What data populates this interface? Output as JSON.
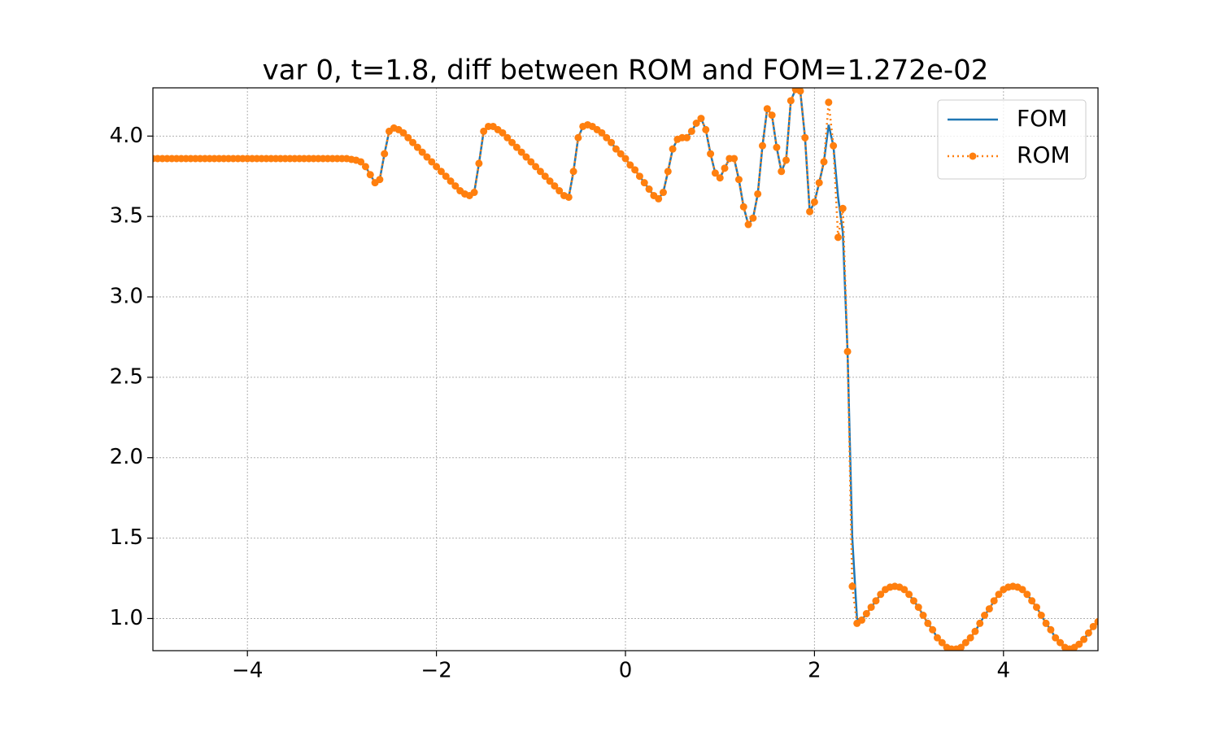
{
  "chart_data": {
    "type": "line",
    "title": "var 0, t=1.8,  diff between ROM and FOM=1.272e-02",
    "x": [
      -5,
      -4.95,
      -4.9,
      -4.85,
      -4.8,
      -4.75,
      -4.7,
      -4.65,
      -4.6,
      -4.55,
      -4.5,
      -4.45,
      -4.4,
      -4.35,
      -4.3,
      -4.25,
      -4.2,
      -4.15,
      -4.1,
      -4.05,
      -4,
      -3.95,
      -3.9,
      -3.85,
      -3.8,
      -3.75,
      -3.7,
      -3.65,
      -3.6,
      -3.55,
      -3.5,
      -3.45,
      -3.4,
      -3.35,
      -3.3,
      -3.25,
      -3.2,
      -3.15,
      -3.1,
      -3.05,
      -3,
      -2.95,
      -2.9,
      -2.85,
      -2.8,
      -2.75,
      -2.7,
      -2.65,
      -2.6,
      -2.55,
      -2.5,
      -2.45,
      -2.4,
      -2.35,
      -2.3,
      -2.25,
      -2.2,
      -2.15,
      -2.1,
      -2.05,
      -2,
      -1.95,
      -1.9,
      -1.85,
      -1.8,
      -1.75,
      -1.7,
      -1.65,
      -1.6,
      -1.55,
      -1.5,
      -1.45,
      -1.4,
      -1.35,
      -1.3,
      -1.25,
      -1.2,
      -1.15,
      -1.1,
      -1.05,
      -1,
      -0.95,
      -0.9,
      -0.85,
      -0.8,
      -0.75,
      -0.7,
      -0.65,
      -0.6,
      -0.55,
      -0.5,
      -0.45,
      -0.4,
      -0.35,
      -0.3,
      -0.25,
      -0.2,
      -0.15,
      -0.1,
      -0.05,
      0,
      0.05,
      0.1,
      0.15,
      0.2,
      0.25,
      0.3,
      0.35,
      0.4,
      0.45,
      0.5,
      0.55,
      0.6,
      0.65,
      0.7,
      0.75,
      0.8,
      0.85,
      0.9,
      0.95,
      1,
      1.05,
      1.1,
      1.15,
      1.2,
      1.25,
      1.3,
      1.35,
      1.4,
      1.45,
      1.5,
      1.55,
      1.6,
      1.65,
      1.7,
      1.75,
      1.8,
      1.85,
      1.9,
      1.95,
      2,
      2.05,
      2.1,
      2.15,
      2.2,
      2.25,
      2.3,
      2.35,
      2.4,
      2.45,
      2.5,
      2.55,
      2.6,
      2.65,
      2.7,
      2.75,
      2.8,
      2.85,
      2.9,
      2.95,
      3,
      3.05,
      3.1,
      3.15,
      3.2,
      3.25,
      3.3,
      3.35,
      3.4,
      3.45,
      3.5,
      3.55,
      3.6,
      3.65,
      3.7,
      3.75,
      3.8,
      3.85,
      3.9,
      3.95,
      4,
      4.05,
      4.1,
      4.15,
      4.2,
      4.25,
      4.3,
      4.35,
      4.4,
      4.45,
      4.5,
      4.55,
      4.6,
      4.65,
      4.7,
      4.75,
      4.8,
      4.85,
      4.9,
      4.95,
      5
    ],
    "series": [
      {
        "name": "FOM",
        "color": "#1f77b4",
        "linestyle": "solid",
        "values": [
          3.86,
          3.86,
          3.86,
          3.86,
          3.86,
          3.86,
          3.86,
          3.86,
          3.86,
          3.86,
          3.86,
          3.86,
          3.86,
          3.86,
          3.86,
          3.86,
          3.86,
          3.86,
          3.86,
          3.86,
          3.86,
          3.86,
          3.86,
          3.86,
          3.86,
          3.86,
          3.86,
          3.86,
          3.86,
          3.86,
          3.86,
          3.86,
          3.86,
          3.86,
          3.86,
          3.86,
          3.86,
          3.86,
          3.86,
          3.86,
          3.86,
          3.86,
          3.855,
          3.85,
          3.84,
          3.81,
          3.76,
          3.71,
          3.73,
          3.89,
          4.03,
          4.05,
          4.04,
          4.02,
          3.99,
          3.96,
          3.93,
          3.9,
          3.87,
          3.84,
          3.81,
          3.78,
          3.75,
          3.72,
          3.69,
          3.66,
          3.64,
          3.63,
          3.65,
          3.83,
          4.03,
          4.06,
          4.06,
          4.04,
          4.02,
          3.99,
          3.96,
          3.93,
          3.9,
          3.87,
          3.84,
          3.81,
          3.78,
          3.75,
          3.72,
          3.69,
          3.66,
          3.63,
          3.62,
          3.78,
          3.99,
          4.06,
          4.07,
          4.06,
          4.04,
          4.02,
          3.99,
          3.96,
          3.92,
          3.89,
          3.86,
          3.82,
          3.79,
          3.75,
          3.71,
          3.67,
          3.63,
          3.61,
          3.65,
          3.78,
          3.92,
          3.98,
          3.99,
          3.99,
          4.03,
          4.08,
          4.11,
          4.04,
          3.89,
          3.77,
          3.74,
          3.8,
          3.86,
          3.86,
          3.73,
          3.56,
          3.45,
          3.49,
          3.64,
          3.94,
          4.17,
          4.13,
          3.93,
          3.78,
          3.85,
          4.22,
          4.29,
          4.28,
          3.99,
          3.53,
          3.59,
          3.71,
          3.84,
          4.07,
          3.94,
          3.62,
          3.4,
          2.66,
          1.5,
          1.0,
          0.99,
          1.03,
          1.07,
          1.11,
          1.15,
          1.18,
          1.195,
          1.2,
          1.195,
          1.18,
          1.15,
          1.11,
          1.07,
          1.02,
          0.97,
          0.93,
          0.88,
          0.85,
          0.82,
          0.81,
          0.81,
          0.82,
          0.85,
          0.88,
          0.92,
          0.97,
          1.02,
          1.06,
          1.11,
          1.15,
          1.18,
          1.195,
          1.2,
          1.195,
          1.18,
          1.15,
          1.11,
          1.07,
          1.02,
          0.97,
          0.93,
          0.88,
          0.85,
          0.82,
          0.81,
          0.82,
          0.84,
          0.87,
          0.91,
          0.95,
          0.98
        ]
      },
      {
        "name": "ROM",
        "color": "#ff7f0e",
        "linestyle": "dotted",
        "marker": "o",
        "values": [
          3.86,
          3.86,
          3.86,
          3.86,
          3.86,
          3.86,
          3.86,
          3.86,
          3.86,
          3.86,
          3.86,
          3.86,
          3.86,
          3.86,
          3.86,
          3.86,
          3.86,
          3.86,
          3.86,
          3.86,
          3.86,
          3.86,
          3.86,
          3.86,
          3.86,
          3.86,
          3.86,
          3.86,
          3.86,
          3.86,
          3.86,
          3.86,
          3.86,
          3.86,
          3.86,
          3.86,
          3.86,
          3.86,
          3.86,
          3.86,
          3.86,
          3.86,
          3.855,
          3.85,
          3.84,
          3.81,
          3.76,
          3.71,
          3.73,
          3.89,
          4.03,
          4.05,
          4.04,
          4.02,
          3.99,
          3.96,
          3.93,
          3.9,
          3.87,
          3.84,
          3.81,
          3.78,
          3.75,
          3.72,
          3.69,
          3.66,
          3.64,
          3.63,
          3.65,
          3.83,
          4.03,
          4.06,
          4.06,
          4.04,
          4.02,
          3.99,
          3.96,
          3.93,
          3.9,
          3.87,
          3.84,
          3.81,
          3.78,
          3.75,
          3.72,
          3.69,
          3.66,
          3.63,
          3.62,
          3.78,
          3.99,
          4.06,
          4.07,
          4.06,
          4.04,
          4.02,
          3.99,
          3.96,
          3.92,
          3.89,
          3.86,
          3.82,
          3.79,
          3.75,
          3.71,
          3.67,
          3.63,
          3.61,
          3.65,
          3.78,
          3.92,
          3.98,
          3.99,
          3.99,
          4.03,
          4.08,
          4.11,
          4.04,
          3.89,
          3.77,
          3.74,
          3.8,
          3.86,
          3.86,
          3.73,
          3.56,
          3.45,
          3.49,
          3.64,
          3.94,
          4.17,
          4.13,
          3.93,
          3.78,
          3.85,
          4.22,
          4.29,
          4.28,
          3.99,
          3.53,
          3.59,
          3.71,
          3.84,
          4.21,
          3.94,
          3.37,
          3.55,
          2.66,
          1.2,
          0.97,
          0.99,
          1.03,
          1.07,
          1.11,
          1.15,
          1.18,
          1.195,
          1.2,
          1.195,
          1.18,
          1.15,
          1.11,
          1.07,
          1.02,
          0.97,
          0.93,
          0.88,
          0.85,
          0.82,
          0.81,
          0.81,
          0.82,
          0.85,
          0.88,
          0.92,
          0.97,
          1.02,
          1.06,
          1.11,
          1.15,
          1.18,
          1.195,
          1.2,
          1.195,
          1.18,
          1.15,
          1.11,
          1.07,
          1.02,
          0.97,
          0.93,
          0.88,
          0.85,
          0.82,
          0.81,
          0.82,
          0.84,
          0.87,
          0.91,
          0.95,
          0.98
        ]
      }
    ],
    "xlim": [
      -5,
      5
    ],
    "ylim": [
      0.8,
      4.3
    ],
    "xticks": [
      {
        "value": -4,
        "label": "−4"
      },
      {
        "value": -2,
        "label": "−2"
      },
      0,
      2,
      4
    ],
    "yticks": [
      {
        "value": 1,
        "label": "1.0"
      },
      {
        "value": 1.5,
        "label": "1.5"
      },
      {
        "value": 2,
        "label": "2.0"
      },
      {
        "value": 2.5,
        "label": "2.5"
      },
      {
        "value": 3,
        "label": "3.0"
      },
      {
        "value": 3.5,
        "label": "3.5"
      },
      {
        "value": 4,
        "label": "4.0"
      }
    ],
    "grid": true,
    "legend": "upper right"
  }
}
